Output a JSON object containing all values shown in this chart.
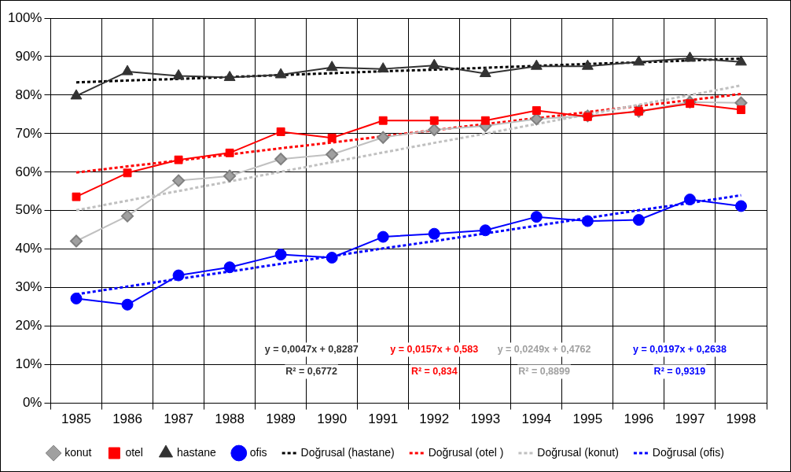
{
  "chart_data": {
    "type": "line",
    "categories": [
      "1985",
      "1986",
      "1987",
      "1988",
      "1989",
      "1990",
      "1991",
      "1992",
      "1993",
      "1994",
      "1995",
      "1996",
      "1997",
      "1998"
    ],
    "ylim": [
      0,
      100
    ],
    "yticks": [
      {
        "value": 0,
        "label": "0%"
      },
      {
        "value": 10,
        "label": "10%"
      },
      {
        "value": 20,
        "label": "20%"
      },
      {
        "value": 30,
        "label": "30%"
      },
      {
        "value": 40,
        "label": "40%"
      },
      {
        "value": 50,
        "label": "50%"
      },
      {
        "value": 60,
        "label": "60%"
      },
      {
        "value": 70,
        "label": "70%"
      },
      {
        "value": 80,
        "label": "80%"
      },
      {
        "value": 90,
        "label": "90%"
      },
      {
        "value": 100,
        "label": "100%"
      }
    ],
    "grid": true,
    "legend": "bottom",
    "series": [
      {
        "name": "konut",
        "color": "#c0c0c0",
        "marker": "diamond",
        "values": [
          42.1,
          48.6,
          57.8,
          59,
          63.4,
          64.6,
          69,
          71,
          72,
          73.8,
          74.6,
          75.8,
          78.2,
          78
        ]
      },
      {
        "name": "otel",
        "color": "#ff0000",
        "marker": "square",
        "values": [
          53.6,
          59.8,
          63.2,
          65,
          70.5,
          68.9,
          73.4,
          73.4,
          73.4,
          76,
          74.4,
          75.8,
          77.8,
          76.2
        ]
      },
      {
        "name": "hastane",
        "color": "#333333",
        "marker": "triangle",
        "values": [
          79.8,
          86.1,
          85,
          84.6,
          85.3,
          87.2,
          86.8,
          87.7,
          85.6,
          87.5,
          87.5,
          88.6,
          89.6,
          88.6
        ]
      },
      {
        "name": "ofis",
        "color": "#0000ff",
        "marker": "circle",
        "values": [
          27.2,
          25.6,
          33.2,
          35.3,
          38.6,
          37.8,
          43.2,
          44,
          44.9,
          48.4,
          47.3,
          47.6,
          52.9,
          51.2
        ]
      },
      {
        "name": "Doğrusal (hastane)",
        "type": "line",
        "color": "#000000",
        "marker": "none",
        "line_style": "dashed",
        "values": [
          83.3,
          83.8,
          84.2,
          84.7,
          85.2,
          85.7,
          86.2,
          86.6,
          87.1,
          87.6,
          88.1,
          88.5,
          89.0,
          89.5
        ]
      },
      {
        "name": "Doğrusal (otel )",
        "type": "line",
        "color": "#ff0000",
        "marker": "none",
        "line_style": "dashed",
        "values": [
          59.9,
          61.5,
          63.0,
          64.6,
          66.2,
          67.7,
          69.3,
          70.9,
          72.5,
          74.0,
          75.6,
          77.2,
          78.7,
          80.3
        ]
      },
      {
        "name": "Doğrusal (konut)",
        "type": "line",
        "color": "#c0c0c0",
        "marker": "none",
        "line_style": "dashed",
        "values": [
          50.1,
          52.6,
          55.1,
          57.6,
          60.1,
          62.6,
          65.1,
          67.6,
          70.0,
          72.5,
          75.0,
          77.5,
          80.0,
          82.5
        ]
      },
      {
        "name": "Doğrusal (ofis)",
        "type": "line",
        "color": "#0000ff",
        "marker": "none",
        "line_style": "dashed",
        "values": [
          28.3,
          30.3,
          32.3,
          34.2,
          36.2,
          38.2,
          40.2,
          42.1,
          44.1,
          46.1,
          48.1,
          50.1,
          52.0,
          54.0
        ]
      }
    ],
    "annotations": [
      "y = 0,0047x + 0,8287",
      "R² = 0,6772",
      "y = 0,0157x + 0,583",
      "R² = 0,834",
      "y = 0,0249x + 0,4762",
      "R² = 0,8899",
      "y = 0,0197x + 0,2638",
      "R² = 0,9319"
    ]
  }
}
